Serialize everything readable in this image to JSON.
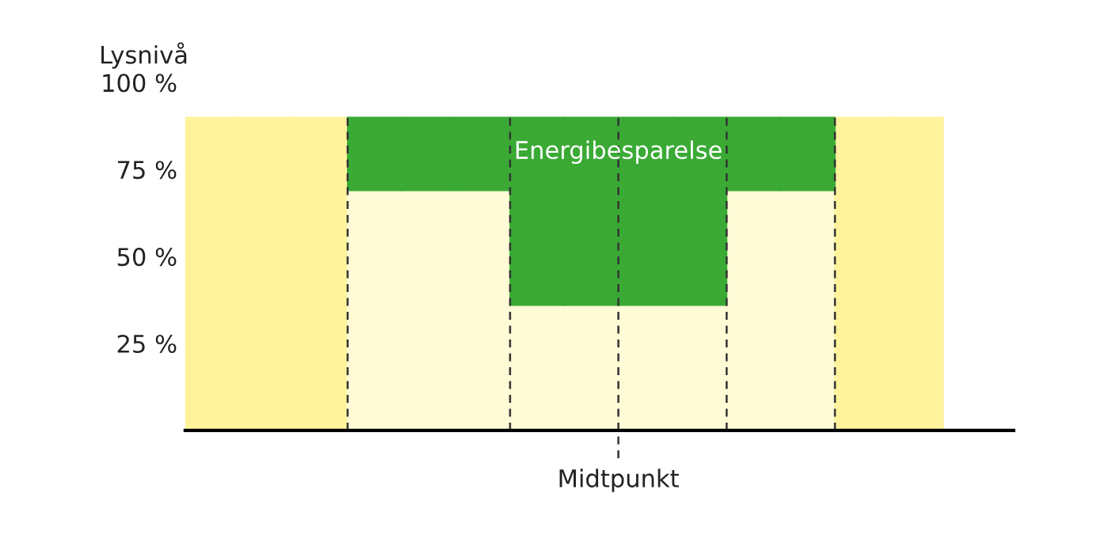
{
  "chart_data": {
    "type": "bar",
    "ylabel": "Lysnivå",
    "stacked": true,
    "categories": [
      null,
      null,
      null,
      null,
      null,
      null,
      null,
      null,
      null,
      null,
      null,
      null,
      null,
      null
    ],
    "series": [
      {
        "colors": [
          "#fff39c",
          "#fff39c",
          "#fff39c",
          "#fffbd6",
          "#fffbd6",
          "#fffbd6",
          "#fffbd6",
          "#fffbd6",
          "#fffbd6",
          "#fffbd6",
          "#fffbd6",
          "#fffbd6",
          "#fff39c",
          "#fff39c"
        ],
        "values": [
          90,
          90,
          90,
          69,
          69,
          69,
          36,
          36,
          36,
          36,
          69,
          69,
          90,
          90
        ]
      },
      {
        "color": "#3aaa35",
        "values": [
          null,
          null,
          null,
          21,
          21,
          21,
          54,
          54,
          54,
          54,
          21,
          21,
          null,
          null
        ]
      }
    ],
    "ylim": [
      0,
      100
    ],
    "yticks": [
      {
        "value": 25,
        "label": "25 %"
      },
      {
        "value": 50,
        "label": "50 %"
      },
      {
        "value": 75,
        "label": "75 %"
      },
      {
        "value": 100,
        "label": "100 %"
      }
    ],
    "annotations": [
      "Energibesparelse",
      "Midtpunkt"
    ],
    "grid": false
  }
}
